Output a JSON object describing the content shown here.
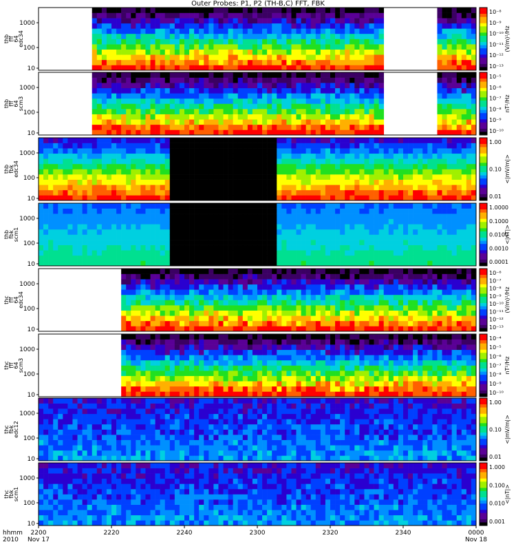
{
  "title": "Outer Probes: P1, P2 (TH-B,C) FFT, FBK",
  "chart_data": {
    "type": "heatmap",
    "x_axis": {
      "range": [
        "2200",
        "0000"
      ],
      "tick_labels": [
        "2200",
        "2220",
        "2240",
        "2300",
        "2320",
        "2340",
        "0000"
      ],
      "minor_tick_label": "",
      "row_label_1": "hhmm",
      "row_label_2": "2010",
      "date_start": "Nov 17",
      "date_end": "Nov 18"
    },
    "panels": [
      {
        "ylabel": [
          "thb",
          "fff",
          "64",
          "edc34"
        ],
        "yticks": [
          "1000",
          "100",
          "10"
        ],
        "colorbar_unit": "(V/m)²/Hz",
        "colorbar_ticks": [
          "10⁻⁸",
          "10⁻⁹",
          "10⁻¹⁰",
          "10⁻¹¹",
          "10⁻¹²",
          "10⁻¹³"
        ],
        "data_span": [
          "2214",
          "2334"
        ],
        "extra_span": [
          "2349",
          "0000"
        ]
      },
      {
        "ylabel": [
          "thb",
          "fff",
          "64",
          "scm3"
        ],
        "yticks": [
          "1000",
          "100",
          "10"
        ],
        "colorbar_unit": "nT²/Hz",
        "colorbar_ticks": [
          "10⁻⁵",
          "10⁻⁶",
          "10⁻⁷",
          "10⁻⁸",
          "10⁻⁹",
          "10⁻¹⁰"
        ],
        "data_span": [
          "2214",
          "2334"
        ],
        "extra_span": [
          "2349",
          "0000"
        ]
      },
      {
        "ylabel": [
          "thb",
          "fbk",
          "edc34"
        ],
        "yticks": [
          "1000",
          "100",
          "10"
        ],
        "colorbar_unit": "<|mV/m|>",
        "colorbar_ticks": [
          "1.00",
          "0.10",
          "0.01"
        ],
        "gap_span": [
          "2235",
          "2304"
        ]
      },
      {
        "ylabel": [
          "thb",
          "fbk",
          "scm1"
        ],
        "yticks": [
          "1000",
          "100",
          "10"
        ],
        "colorbar_unit": "<|nT|>",
        "colorbar_ticks": [
          "1.0000",
          "0.1000",
          "0.0100",
          "0.0010",
          "0.0001"
        ],
        "gap_span": [
          "2235",
          "2304"
        ]
      },
      {
        "ylabel": [
          "thc",
          "fff",
          "64",
          "edc34"
        ],
        "yticks": [
          "1000",
          "100",
          "10"
        ],
        "colorbar_unit": "(V/m)²/Hz",
        "colorbar_ticks": [
          "10⁻⁶",
          "10⁻⁷",
          "10⁻⁸",
          "10⁻⁹",
          "10⁻¹⁰",
          "10⁻¹¹",
          "10⁻¹²",
          "10⁻¹³"
        ],
        "data_span": [
          "2222",
          "0000"
        ]
      },
      {
        "ylabel": [
          "thc",
          "fff",
          "64",
          "scm3"
        ],
        "yticks": [
          "1000",
          "100",
          "10"
        ],
        "colorbar_unit": "nT²/Hz",
        "colorbar_ticks": [
          "10⁻⁴",
          "10⁻⁵",
          "10⁻⁶",
          "10⁻⁷",
          "10⁻⁸",
          "10⁻⁹",
          "10⁻¹⁰"
        ],
        "data_span": [
          "2222",
          "0000"
        ]
      },
      {
        "ylabel": [
          "thc",
          "fbk",
          "edc12"
        ],
        "yticks": [
          "1000",
          "100",
          "10"
        ],
        "colorbar_unit": "<|mV/m|>",
        "colorbar_ticks": [
          "1.00",
          "0.10",
          "0.01"
        ]
      },
      {
        "ylabel": [
          "thc",
          "fbk",
          "scm1"
        ],
        "yticks": [
          "1000",
          "100",
          "10"
        ],
        "colorbar_unit": "<|nT|>",
        "colorbar_ticks": [
          "1.000",
          "0.100",
          "0.010",
          "0.001"
        ]
      }
    ]
  }
}
